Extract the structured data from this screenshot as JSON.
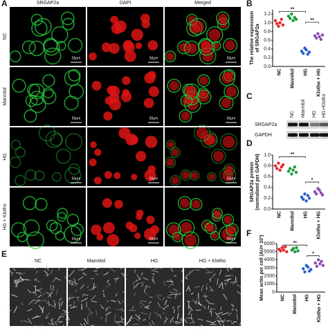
{
  "panel_labels": [
    "A",
    "B",
    "C",
    "D",
    "E",
    "F"
  ],
  "panel_a": {
    "columns": [
      "SRGAP2a",
      "DAPI",
      "Merged"
    ],
    "rows": [
      "NC",
      "Mannitol",
      "HG",
      "HG + Klotho"
    ],
    "scale_bar": "50μm"
  },
  "panel_c": {
    "lanes": [
      "NC",
      "Mannitol",
      "HG",
      "HG+Klotho"
    ],
    "bands": [
      "SRGAP2a",
      "GAPDH"
    ]
  },
  "panel_e": {
    "columns": [
      "NC",
      "Mannitol",
      "HG",
      "HG + Klotho"
    ],
    "scale_bar": "1 μm"
  },
  "chart_data": [
    {
      "type": "dot",
      "y_label": [
        "The relative expression",
        "of SRGAP2a"
      ],
      "categories": [
        "NC",
        "Mannitol",
        "HG",
        "Klotho + HG"
      ],
      "colors": [
        "#e8262b",
        "#1a9a3c",
        "#2a5fc8",
        "#8a4bb5"
      ],
      "values": [
        [
          1.05,
          0.98,
          0.92,
          1.0,
          1.08,
          0.95
        ],
        [
          1.15,
          1.1,
          1.2,
          1.05,
          1.12,
          1.08
        ],
        [
          0.35,
          0.3,
          0.42,
          0.38,
          0.28,
          0.33
        ],
        [
          0.7,
          0.65,
          0.75,
          0.68,
          0.62,
          0.72
        ]
      ],
      "ylim": [
        0,
        1.3
      ],
      "yticks": [
        {
          "value": 0,
          "label": "0.0"
        },
        0.2,
        0.4,
        0.6,
        0.8,
        {
          "value": 1,
          "label": "1.0"
        },
        1.2
      ],
      "annotations": [
        "**",
        "**"
      ]
    },
    {
      "type": "dot",
      "y_label": [
        "SRGAP2a protein",
        "(normalized per GAPDH)"
      ],
      "categories": [
        "NC",
        "Mannitol",
        "HG",
        "Klotho + HG"
      ],
      "colors": [
        "#e8262b",
        "#1a9a3c",
        "#2a5fc8",
        "#8a4bb5"
      ],
      "values": [
        [
          0.8,
          0.75,
          0.85,
          0.72,
          0.78,
          0.82
        ],
        [
          0.7,
          0.75,
          0.65,
          0.72,
          0.78,
          0.68
        ],
        [
          0.22,
          0.18,
          0.28,
          0.15,
          0.25,
          0.2
        ],
        [
          0.32,
          0.28,
          0.38,
          0.35,
          0.3,
          0.26
        ]
      ],
      "ylim": [
        0,
        1
      ],
      "yticks": [
        {
          "value": 0,
          "label": "0.0"
        },
        0.2,
        0.4,
        0.6,
        0.8,
        {
          "value": 1,
          "label": "1.0"
        }
      ],
      "annotations": [
        "**",
        "*"
      ]
    },
    {
      "type": "dot",
      "y_label": [
        "Mean actin per cell (AU× 10³)"
      ],
      "categories": [
        "NC",
        "Mannitol",
        "HG",
        "Klotho + HG"
      ],
      "colors": [
        "#e8262b",
        "#1a9a3c",
        "#2a5fc8",
        "#8a4bb5"
      ],
      "values": [
        [
          5300,
          5100,
          5500,
          5200,
          5600,
          5000
        ],
        [
          5200,
          5400,
          5000,
          5500,
          5100
        ],
        [
          2900,
          2500,
          3300,
          3100,
          2600,
          2800
        ],
        [
          3600,
          3200,
          4000,
          3500,
          3800,
          3300
        ]
      ],
      "ylim": [
        0,
        6000
      ],
      "yticks": [
        0,
        1000,
        2000,
        3000,
        4000,
        5000,
        6000
      ],
      "annotations": [
        "**",
        "*"
      ]
    }
  ]
}
